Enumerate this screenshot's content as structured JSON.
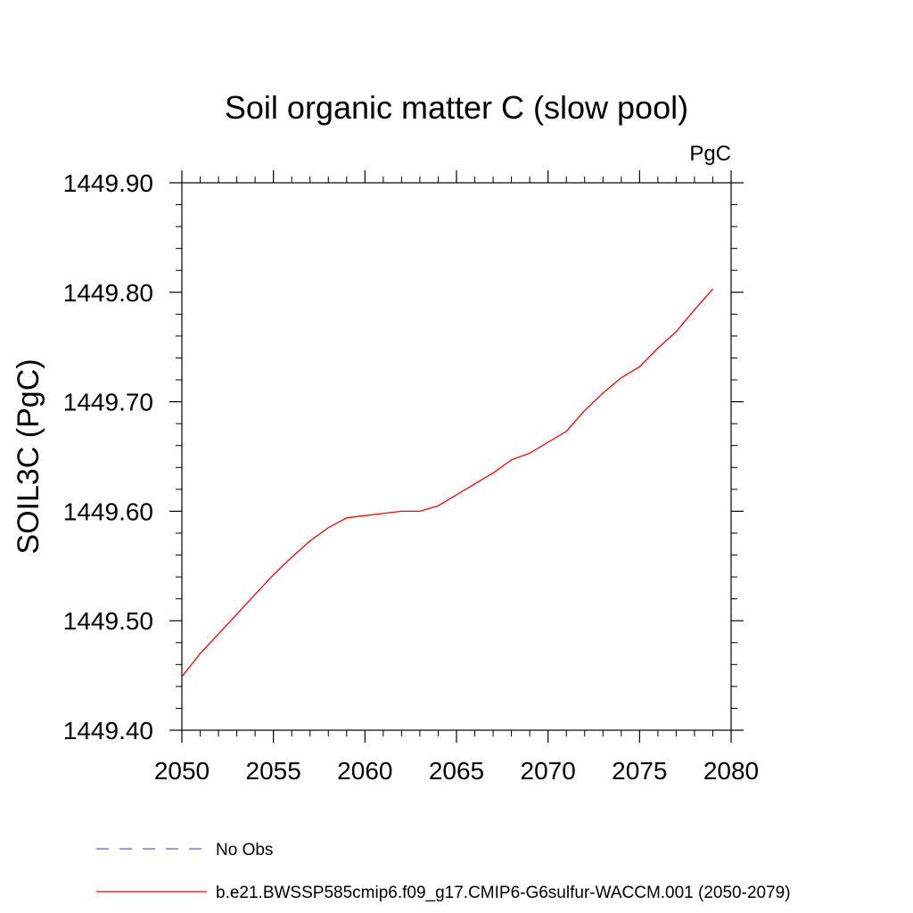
{
  "chart_data": {
    "type": "line",
    "title": "Soil organic matter C (slow pool)",
    "units_label": "PgC",
    "ylabel": "SOIL3C  (PgC)",
    "xlabel": "",
    "xlim": [
      2050,
      2080
    ],
    "ylim": [
      1449.4,
      1449.9
    ],
    "x_ticks": [
      "2050",
      "2055",
      "2060",
      "2065",
      "2070",
      "2075",
      "2080"
    ],
    "y_ticks": [
      "1449.40",
      "1449.50",
      "1449.60",
      "1449.70",
      "1449.80",
      "1449.90"
    ],
    "x_minor_step": 1,
    "y_minor_step": 0.02,
    "grid": false,
    "series": [
      {
        "name": "b.e21.BWSSP585cmip6.f09_g17.CMIP6-G6sulfur-WACCM.001 (2050-2079)",
        "color": "#ff0000",
        "style": "solid",
        "x": [
          2050,
          2051,
          2052,
          2053,
          2054,
          2055,
          2056,
          2057,
          2058,
          2059,
          2060,
          2061,
          2062,
          2063,
          2064,
          2065,
          2066,
          2067,
          2068,
          2069,
          2070,
          2071,
          2072,
          2073,
          2074,
          2075,
          2076,
          2077,
          2078,
          2079
        ],
        "values": [
          1449.449,
          1449.47,
          1449.488,
          1449.506,
          1449.524,
          1449.542,
          1449.558,
          1449.573,
          1449.585,
          1449.594,
          1449.596,
          1449.598,
          1449.6,
          1449.6,
          1449.605,
          1449.615,
          1449.625,
          1449.635,
          1449.647,
          1449.653,
          1449.663,
          1449.673,
          1449.692,
          1449.708,
          1449.722,
          1449.732,
          1449.749,
          1449.764,
          1449.784,
          1449.803
        ]
      }
    ],
    "legend": [
      {
        "label": "No Obs",
        "color": "#6a5acd",
        "style": "dashed"
      },
      {
        "label": "b.e21.BWSSP585cmip6.f09_g17.CMIP6-G6sulfur-WACCM.001 (2050-2079)",
        "color": "#ff0000",
        "style": "solid"
      }
    ],
    "legend_position": "bottom"
  }
}
